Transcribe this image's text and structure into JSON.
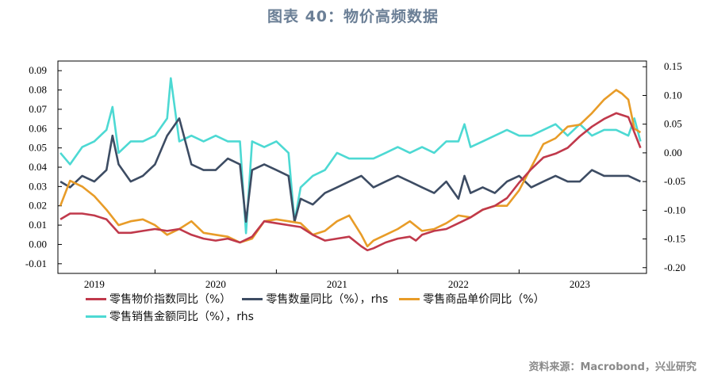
{
  "title": "图表 40：物价高频数据",
  "source": "资料来源：Macrobond，兴业研究",
  "chart_data": {
    "type": "line",
    "x_range": [
      2018.7,
      2023.55
    ],
    "x_tick_labels": [
      {
        "label": "2019",
        "x": 2019.0
      },
      {
        "label": "2020",
        "x": 2020.0
      },
      {
        "label": "2021",
        "x": 2021.0
      },
      {
        "label": "2022",
        "x": 2022.0
      },
      {
        "label": "2023",
        "x": 2023.0
      }
    ],
    "x_dividers": [
      2019.5,
      2020.5,
      2021.5,
      2022.5
    ],
    "y_left": {
      "ylim": [
        -0.015,
        0.095
      ],
      "ticks": [
        -0.01,
        0.0,
        0.01,
        0.02,
        0.03,
        0.04,
        0.05,
        0.06,
        0.07,
        0.08,
        0.09
      ],
      "tick_labels": [
        "-0.01",
        "0.00",
        "0.01",
        "0.02",
        "0.03",
        "0.04",
        "0.05",
        "0.06",
        "0.07",
        "0.08",
        "0.09"
      ]
    },
    "y_right": {
      "ylim": [
        -0.21,
        0.16
      ],
      "ticks": [
        -0.2,
        -0.15,
        -0.1,
        -0.05,
        0.0,
        0.05,
        0.1,
        0.15
      ],
      "tick_labels": [
        "-0.20",
        "-0.15",
        "-0.10",
        "-0.05",
        "0.00",
        "0.05",
        "0.10",
        "0.15"
      ]
    },
    "series": [
      {
        "name": "零售物价指数同比（%）",
        "axis": "left",
        "color": "#c0394b",
        "x": [
          2018.72,
          2018.8,
          2018.9,
          2019.0,
          2019.1,
          2019.2,
          2019.3,
          2019.4,
          2019.5,
          2019.6,
          2019.7,
          2019.8,
          2019.9,
          2020.0,
          2020.1,
          2020.2,
          2020.3,
          2020.4,
          2020.5,
          2020.6,
          2020.7,
          2020.8,
          2020.9,
          2021.0,
          2021.1,
          2021.2,
          2021.25,
          2021.3,
          2021.4,
          2021.5,
          2021.6,
          2021.65,
          2021.7,
          2021.8,
          2021.9,
          2022.0,
          2022.1,
          2022.2,
          2022.3,
          2022.4,
          2022.5,
          2022.6,
          2022.7,
          2022.8,
          2022.9,
          2023.0,
          2023.1,
          2023.2,
          2023.3,
          2023.4,
          2023.5
        ],
        "values": [
          0.013,
          0.016,
          0.016,
          0.015,
          0.013,
          0.006,
          0.006,
          0.007,
          0.008,
          0.007,
          0.008,
          0.005,
          0.003,
          0.002,
          0.003,
          0.001,
          0.004,
          0.012,
          0.011,
          0.01,
          0.009,
          0.005,
          0.002,
          0.003,
          0.004,
          -0.001,
          -0.003,
          -0.002,
          0.001,
          0.003,
          0.004,
          0.002,
          0.005,
          0.007,
          0.008,
          0.011,
          0.014,
          0.018,
          0.02,
          0.024,
          0.032,
          0.039,
          0.045,
          0.047,
          0.05,
          0.056,
          0.061,
          0.065,
          0.068,
          0.066,
          0.05
        ]
      },
      {
        "name": "零售数量同比（%），rhs",
        "axis": "right",
        "color": "#3d4c63",
        "x": [
          2018.72,
          2018.8,
          2018.9,
          2019.0,
          2019.1,
          2019.15,
          2019.2,
          2019.3,
          2019.4,
          2019.5,
          2019.6,
          2019.7,
          2019.8,
          2019.9,
          2020.0,
          2020.1,
          2020.2,
          2020.25,
          2020.3,
          2020.4,
          2020.5,
          2020.6,
          2020.65,
          2020.7,
          2020.8,
          2020.9,
          2021.0,
          2021.1,
          2021.2,
          2021.3,
          2021.4,
          2021.5,
          2021.6,
          2021.7,
          2021.8,
          2021.9,
          2022.0,
          2022.05,
          2022.1,
          2022.2,
          2022.3,
          2022.4,
          2022.5,
          2022.6,
          2022.7,
          2022.8,
          2022.9,
          2023.0,
          2023.1,
          2023.2,
          2023.3,
          2023.4,
          2023.5
        ],
        "values": [
          -0.05,
          -0.06,
          -0.04,
          -0.05,
          -0.03,
          0.03,
          -0.02,
          -0.05,
          -0.04,
          -0.02,
          0.03,
          0.06,
          -0.02,
          -0.03,
          -0.03,
          -0.01,
          -0.02,
          -0.12,
          -0.03,
          -0.02,
          -0.03,
          -0.04,
          -0.12,
          -0.08,
          -0.09,
          -0.07,
          -0.06,
          -0.05,
          -0.04,
          -0.06,
          -0.05,
          -0.04,
          -0.05,
          -0.06,
          -0.07,
          -0.05,
          -0.08,
          -0.04,
          -0.07,
          -0.06,
          -0.07,
          -0.05,
          -0.04,
          -0.06,
          -0.05,
          -0.04,
          -0.05,
          -0.05,
          -0.03,
          -0.04,
          -0.04,
          -0.04,
          -0.05
        ]
      },
      {
        "name": "零售商品单价同比（%）",
        "axis": "left",
        "color": "#e89c28",
        "x": [
          2018.72,
          2018.8,
          2018.9,
          2019.0,
          2019.1,
          2019.2,
          2019.3,
          2019.4,
          2019.5,
          2019.6,
          2019.7,
          2019.8,
          2019.9,
          2020.0,
          2020.1,
          2020.2,
          2020.3,
          2020.4,
          2020.5,
          2020.6,
          2020.7,
          2020.8,
          2020.9,
          2021.0,
          2021.1,
          2021.2,
          2021.25,
          2021.3,
          2021.4,
          2021.5,
          2021.6,
          2021.7,
          2021.8,
          2021.9,
          2022.0,
          2022.1,
          2022.2,
          2022.3,
          2022.4,
          2022.5,
          2022.6,
          2022.7,
          2022.8,
          2022.9,
          2023.0,
          2023.1,
          2023.2,
          2023.3,
          2023.35,
          2023.4,
          2023.45,
          2023.5
        ],
        "values": [
          0.02,
          0.033,
          0.03,
          0.025,
          0.018,
          0.01,
          0.012,
          0.013,
          0.01,
          0.005,
          0.008,
          0.012,
          0.006,
          0.005,
          0.004,
          0.001,
          0.003,
          0.012,
          0.013,
          0.012,
          0.011,
          0.005,
          0.007,
          0.012,
          0.015,
          0.005,
          -0.001,
          0.002,
          0.005,
          0.008,
          0.012,
          0.007,
          0.008,
          0.011,
          0.015,
          0.014,
          0.018,
          0.02,
          0.02,
          0.028,
          0.04,
          0.052,
          0.055,
          0.061,
          0.062,
          0.068,
          0.075,
          0.08,
          0.078,
          0.075,
          0.06,
          0.058
        ]
      },
      {
        "name": "零售销售金额同比（%），rhs",
        "axis": "right",
        "color": "#4dd9d3",
        "x": [
          2018.72,
          2018.8,
          2018.9,
          2019.0,
          2019.1,
          2019.15,
          2019.2,
          2019.3,
          2019.4,
          2019.5,
          2019.6,
          2019.63,
          2019.7,
          2019.8,
          2019.9,
          2020.0,
          2020.1,
          2020.2,
          2020.25,
          2020.3,
          2020.4,
          2020.5,
          2020.6,
          2020.65,
          2020.7,
          2020.8,
          2020.9,
          2021.0,
          2021.1,
          2021.2,
          2021.3,
          2021.4,
          2021.5,
          2021.6,
          2021.7,
          2021.8,
          2021.9,
          2022.0,
          2022.05,
          2022.1,
          2022.2,
          2022.3,
          2022.4,
          2022.5,
          2022.6,
          2022.7,
          2022.8,
          2022.9,
          2023.0,
          2023.1,
          2023.2,
          2023.3,
          2023.4,
          2023.45,
          2023.5
        ],
        "values": [
          0.0,
          -0.02,
          0.01,
          0.02,
          0.04,
          0.08,
          0.0,
          0.02,
          0.02,
          0.03,
          0.06,
          0.13,
          0.02,
          0.03,
          0.02,
          0.03,
          0.02,
          0.02,
          -0.14,
          0.02,
          0.01,
          0.02,
          0.0,
          -0.12,
          -0.06,
          -0.04,
          -0.03,
          0.0,
          -0.01,
          -0.01,
          -0.01,
          0.0,
          0.01,
          0.0,
          0.01,
          0.0,
          0.02,
          0.02,
          0.05,
          0.01,
          0.02,
          0.03,
          0.04,
          0.03,
          0.03,
          0.04,
          0.05,
          0.03,
          0.05,
          0.03,
          0.04,
          0.04,
          0.03,
          0.06,
          0.02
        ]
      }
    ]
  }
}
